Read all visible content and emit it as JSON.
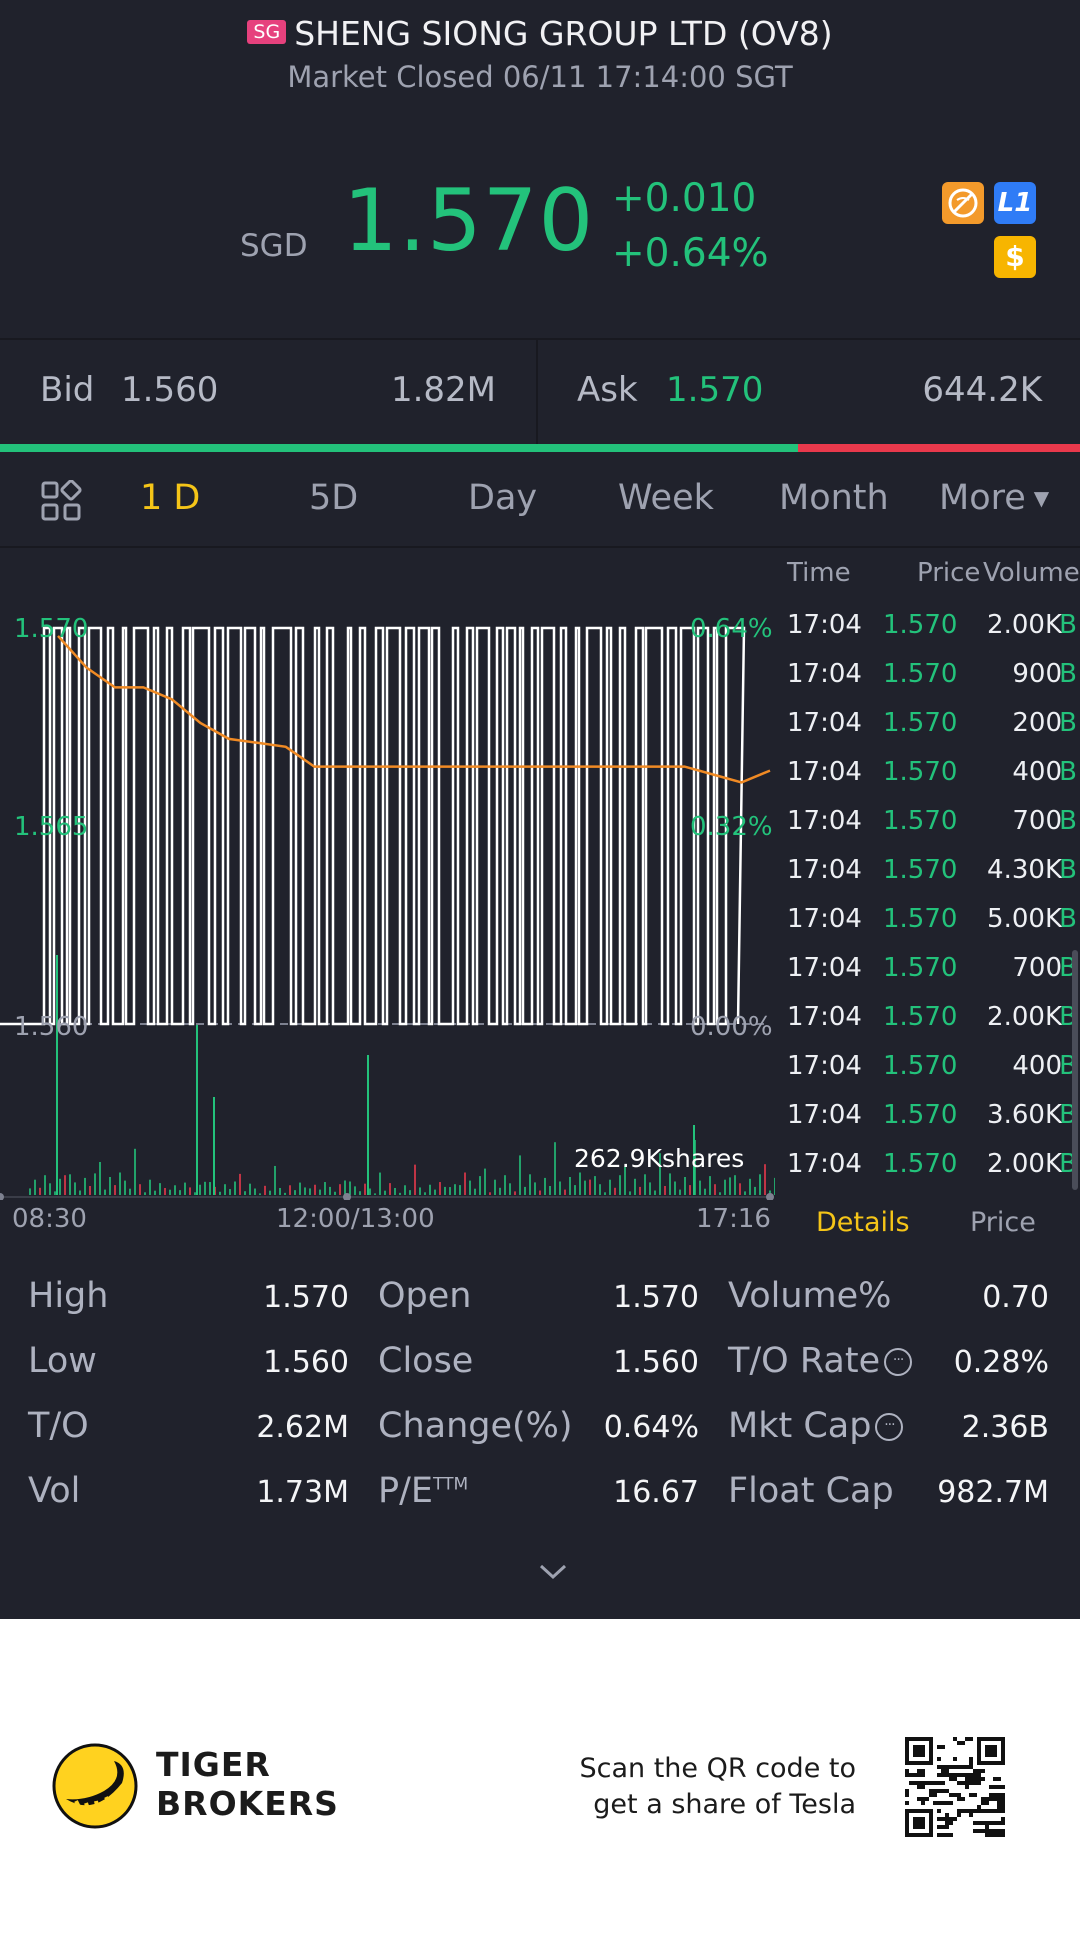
{
  "header": {
    "market_badge": "SG",
    "title": "SHENG SIONG GROUP LTD (OV8)",
    "status": "Market Closed 06/11 17:14:00 SGT",
    "currency": "SGD",
    "price": "1.570",
    "change": "+0.010",
    "change_pct": "+0.64%",
    "icons": [
      "no-short-icon",
      "level1-icon",
      "dollar-icon"
    ],
    "level1_label": "L1",
    "dollar_label": "$"
  },
  "quote": {
    "bid_label": "Bid",
    "bid_price": "1.560",
    "bid_size": "1.82M",
    "ask_label": "Ask",
    "ask_price": "1.570",
    "ask_size": "644.2K",
    "bid_fraction": 0.739
  },
  "tabs": {
    "items": [
      "1 D",
      "5D",
      "Day",
      "Week",
      "Month",
      "More"
    ],
    "active": "1 D"
  },
  "chart_data": {
    "type": "line",
    "y_left_ticks": [
      "1.570",
      "1.565",
      "1.560"
    ],
    "y_right_ticks": [
      "0.64%",
      "0.32%",
      "0.00%"
    ],
    "x_ticks": [
      "08:30",
      "12:00/13:00",
      "17:16"
    ],
    "ylim": [
      1.56,
      1.57
    ],
    "volume_label": "262.9Kshares",
    "avg_price_series": [
      1.5698,
      1.569,
      1.5685,
      1.5685,
      1.5682,
      1.5676,
      1.5672,
      1.5671,
      1.567,
      1.5665,
      1.5665,
      1.5665,
      1.5665,
      1.5665,
      1.5665,
      1.5665,
      1.5665,
      1.5665,
      1.5665,
      1.5665,
      1.5665,
      1.5665,
      1.5665,
      1.5663,
      1.5661,
      1.5664
    ],
    "colors": {
      "price": "#ffffff",
      "avg": "#f08a24",
      "up": "#23c27b",
      "down": "#e9394c"
    }
  },
  "trades": {
    "headers": {
      "time": "Time",
      "price": "Price",
      "volume": "Volume"
    },
    "rows": [
      {
        "time": "17:04",
        "price": "1.570",
        "volume": "2.00K",
        "side": "B"
      },
      {
        "time": "17:04",
        "price": "1.570",
        "volume": "900",
        "side": "B"
      },
      {
        "time": "17:04",
        "price": "1.570",
        "volume": "200",
        "side": "B"
      },
      {
        "time": "17:04",
        "price": "1.570",
        "volume": "400",
        "side": "B"
      },
      {
        "time": "17:04",
        "price": "1.570",
        "volume": "700",
        "side": "B"
      },
      {
        "time": "17:04",
        "price": "1.570",
        "volume": "4.30K",
        "side": "B"
      },
      {
        "time": "17:04",
        "price": "1.570",
        "volume": "5.00K",
        "side": "B"
      },
      {
        "time": "17:04",
        "price": "1.570",
        "volume": "700",
        "side": "B"
      },
      {
        "time": "17:04",
        "price": "1.570",
        "volume": "2.00K",
        "side": "B"
      },
      {
        "time": "17:04",
        "price": "1.570",
        "volume": "400",
        "side": "B"
      },
      {
        "time": "17:04",
        "price": "1.570",
        "volume": "3.60K",
        "side": "B"
      },
      {
        "time": "17:04",
        "price": "1.570",
        "volume": "2.00K",
        "side": "B"
      }
    ],
    "tab_details": "Details",
    "tab_price": "Price"
  },
  "stats": {
    "high_label": "High",
    "high": "1.570",
    "low_label": "Low",
    "low": "1.560",
    "to_label": "T/O",
    "to": "2.62M",
    "vol_label": "Vol",
    "vol": "1.73M",
    "open_label": "Open",
    "open": "1.570",
    "close_label": "Close",
    "close": "1.560",
    "change_label": "Change(%)",
    "change": "0.64%",
    "pe_label": "P/E",
    "pe_sup": "TTM",
    "pe": "16.67",
    "volpct_label": "Volume%",
    "volpct": "0.70",
    "torate_label": "T/O Rate",
    "torate": "0.28%",
    "mktcap_label": "Mkt Cap",
    "mktcap": "2.36B",
    "floatcap_label": "Float Cap",
    "floatcap": "982.7M",
    "info_glyph": "···"
  },
  "footer": {
    "brand_line1": "TIGER",
    "brand_line2": "BROKERS",
    "promo_line1": "Scan the QR code to",
    "promo_line2": "get a share of Tesla"
  }
}
